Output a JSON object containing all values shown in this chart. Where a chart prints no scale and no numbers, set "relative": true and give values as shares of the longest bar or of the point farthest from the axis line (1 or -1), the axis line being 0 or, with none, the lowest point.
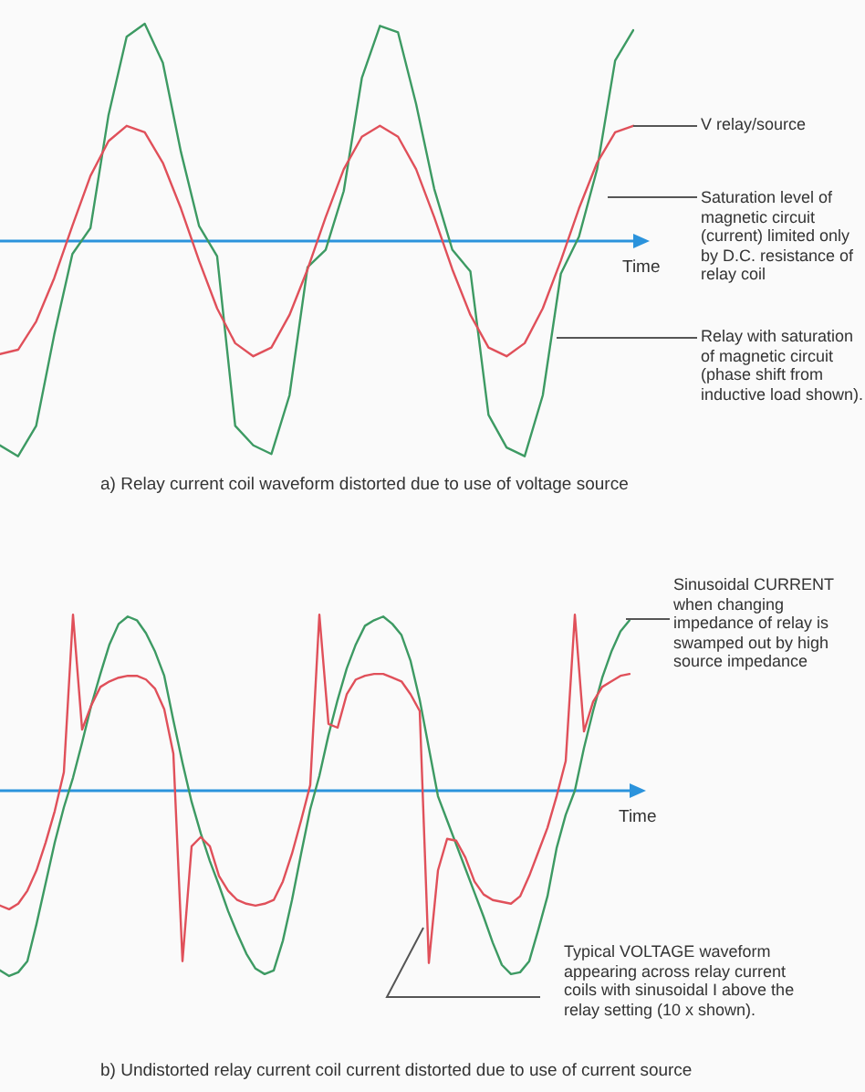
{
  "chart_data": [
    {
      "type": "line",
      "title": "a)  Relay current coil waveform distorted due to use of voltage source",
      "xlabel": "Time",
      "relative": true,
      "ref_lines": [
        {
          "axis": "y",
          "value": 0,
          "color": "#2b93dc"
        }
      ],
      "marker": "none",
      "line_style": "solid",
      "categories": [
        null,
        null,
        null,
        null,
        null,
        null,
        null,
        null,
        null,
        null,
        null,
        null,
        null,
        null,
        null,
        null,
        null,
        null,
        null,
        null,
        null,
        null,
        null,
        null,
        null,
        null,
        null,
        null,
        null,
        null,
        null,
        null,
        null,
        null,
        null,
        null
      ],
      "series": [
        {
          "color": "#e0505a",
          "values": [
            -0.52,
            -0.5,
            -0.37,
            -0.17,
            0.07,
            0.3,
            0.46,
            0.53,
            0.5,
            0.36,
            0.15,
            -0.09,
            -0.31,
            -0.47,
            -0.53,
            -0.49,
            -0.34,
            -0.13,
            0.11,
            0.33,
            0.48,
            0.53,
            0.48,
            0.33,
            0.11,
            -0.13,
            -0.34,
            -0.49,
            -0.53,
            -0.47,
            -0.31,
            -0.09,
            0.15,
            0.36,
            0.5,
            0.53
          ]
        },
        {
          "color": "#3d9a63",
          "values": [
            -0.94,
            -0.99,
            -0.85,
            -0.43,
            -0.06,
            0.06,
            0.58,
            0.94,
            1,
            0.82,
            0.41,
            0.07,
            -0.07,
            -0.85,
            -0.94,
            -0.98,
            -0.71,
            -0.12,
            -0.04,
            0.23,
            0.75,
            0.99,
            0.96,
            0.63,
            0.24,
            -0.04,
            -0.14,
            -0.8,
            -0.95,
            -0.99,
            -0.71,
            -0.15,
            0.02,
            0.33,
            0.83,
            0.97
          ]
        }
      ],
      "annotations": [
        "V relay/source",
        "Saturation level of magnetic circuit (current) limited only by D.C. resistance of relay coil",
        "Relay with saturation of magnetic circuit (phase shift from inductive load shown)."
      ]
    },
    {
      "type": "line",
      "title": "b)  Undistorted relay current coil current distorted due to use of current source",
      "xlabel": "Time",
      "relative": true,
      "ref_lines": [
        {
          "axis": "y",
          "value": 0,
          "color": "#2b93dc"
        }
      ],
      "marker": "none",
      "line_style": "solid",
      "categories": [
        null,
        null,
        null,
        null,
        null,
        null,
        null,
        null,
        null,
        null,
        null,
        null,
        null,
        null,
        null,
        null,
        null,
        null,
        null,
        null,
        null,
        null,
        null,
        null,
        null,
        null,
        null,
        null,
        null,
        null,
        null,
        null,
        null,
        null,
        null,
        null,
        null,
        null,
        null,
        null,
        null,
        null,
        null,
        null,
        null,
        null,
        null,
        null,
        null,
        null,
        null,
        null,
        null,
        null,
        null,
        null,
        null,
        null,
        null,
        null,
        null,
        null,
        null,
        null,
        null,
        null,
        null,
        null,
        null,
        null
      ],
      "series": [
        {
          "color": "#e0505a",
          "values": [
            -0.62,
            -0.64,
            -0.61,
            -0.54,
            -0.43,
            -0.28,
            -0.11,
            0.1,
            0.95,
            0.33,
            0.46,
            0.56,
            0.59,
            0.61,
            0.62,
            0.62,
            0.6,
            0.55,
            0.44,
            0.2,
            -0.92,
            -0.3,
            -0.25,
            -0.3,
            -0.46,
            -0.54,
            -0.59,
            -0.61,
            -0.62,
            -0.61,
            -0.59,
            -0.49,
            -0.34,
            -0.16,
            0.03,
            0.95,
            0.36,
            0.34,
            0.52,
            0.6,
            0.62,
            0.63,
            0.63,
            0.61,
            0.59,
            0.52,
            0.43,
            -0.93,
            -0.43,
            -0.26,
            -0.27,
            -0.36,
            -0.49,
            -0.56,
            -0.59,
            -0.6,
            -0.61,
            -0.57,
            -0.46,
            -0.33,
            -0.2,
            -0.03,
            0.16,
            0.95,
            0.32,
            0.48,
            0.56,
            0.59,
            0.62,
            0.63
          ]
        },
        {
          "color": "#3d9a63",
          "values": [
            -0.97,
            -1,
            -0.98,
            -0.92,
            -0.72,
            -0.5,
            -0.28,
            -0.09,
            0.07,
            0.26,
            0.46,
            0.63,
            0.79,
            0.9,
            0.94,
            0.92,
            0.85,
            0.75,
            0.62,
            0.38,
            0.15,
            -0.06,
            -0.23,
            -0.38,
            -0.51,
            -0.65,
            -0.77,
            -0.88,
            -0.96,
            -0.99,
            -0.97,
            -0.81,
            -0.59,
            -0.34,
            -0.1,
            0.08,
            0.3,
            0.49,
            0.66,
            0.79,
            0.89,
            0.92,
            0.94,
            0.9,
            0.84,
            0.7,
            0.49,
            0.23,
            -0.03,
            -0.16,
            -0.29,
            -0.42,
            -0.55,
            -0.68,
            -0.82,
            -0.94,
            -0.99,
            -0.98,
            -0.92,
            -0.75,
            -0.57,
            -0.31,
            -0.13,
            0.0,
            0.23,
            0.43,
            0.61,
            0.75,
            0.86,
            0.92
          ]
        }
      ],
      "annotations": [
        "Sinusoidal CURRENT when changing impedance of relay is swamped out by high source impedance",
        "Typical VOLTAGE waveform appearing across relay current coils with sinusoidal I above the relay setting (10 x shown)."
      ]
    }
  ]
}
